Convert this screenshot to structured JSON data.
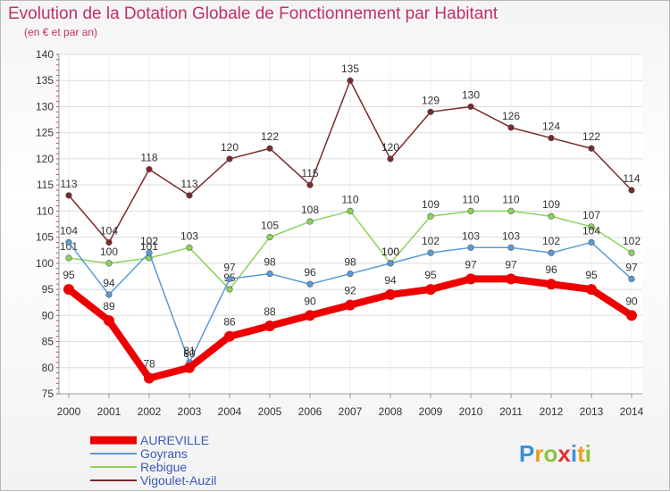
{
  "title": "Evolution de la Dotation Globale de Fonctionnement par Habitant",
  "subtitle": "(en € et par an)",
  "colors": {
    "AUREVILLE": "#ee0000",
    "Goyrans": "#5a9ad6",
    "Rebigue": "#8bd45a",
    "Vigoulet-Auzil": "#7a2a2a"
  },
  "logo": {
    "text": "Proxiti",
    "letters": [
      {
        "ch": "P",
        "color": "#3a8fd8"
      },
      {
        "ch": "r",
        "color": "#e8a020"
      },
      {
        "ch": "o",
        "color": "#8bc43a"
      },
      {
        "ch": "x",
        "color": "#e03030"
      },
      {
        "ch": "i",
        "color": "#3a8fd8"
      },
      {
        "ch": "t",
        "color": "#e8a020"
      },
      {
        "ch": "i",
        "color": "#8bc43a"
      }
    ]
  },
  "chart_data": {
    "type": "line",
    "x": [
      "2000",
      "2001",
      "2002",
      "2003",
      "2004",
      "2005",
      "2006",
      "2007",
      "2008",
      "2009",
      "2010",
      "2011",
      "2012",
      "2013",
      "2014"
    ],
    "ylim": [
      75,
      140
    ],
    "yticks": [
      75,
      80,
      85,
      90,
      95,
      100,
      105,
      110,
      115,
      120,
      125,
      130,
      135,
      140
    ],
    "grid": true,
    "legend": "bottom-left",
    "series": [
      {
        "name": "Vigoulet-Auzil",
        "values": [
          113,
          104,
          118,
          113,
          120,
          122,
          115,
          135,
          120,
          129,
          130,
          126,
          124,
          122,
          114
        ]
      },
      {
        "name": "Rebigue",
        "values": [
          101,
          100,
          101,
          103,
          95,
          105,
          108,
          110,
          100,
          109,
          110,
          110,
          109,
          107,
          102
        ]
      },
      {
        "name": "Goyrans",
        "values": [
          104,
          94,
          102,
          81,
          97,
          98,
          96,
          98,
          100,
          102,
          103,
          103,
          102,
          104,
          97
        ]
      },
      {
        "name": "AUREVILLE",
        "values": [
          95,
          89,
          78,
          80,
          86,
          88,
          90,
          92,
          94,
          95,
          97,
          97,
          96,
          95,
          90
        ]
      }
    ]
  }
}
